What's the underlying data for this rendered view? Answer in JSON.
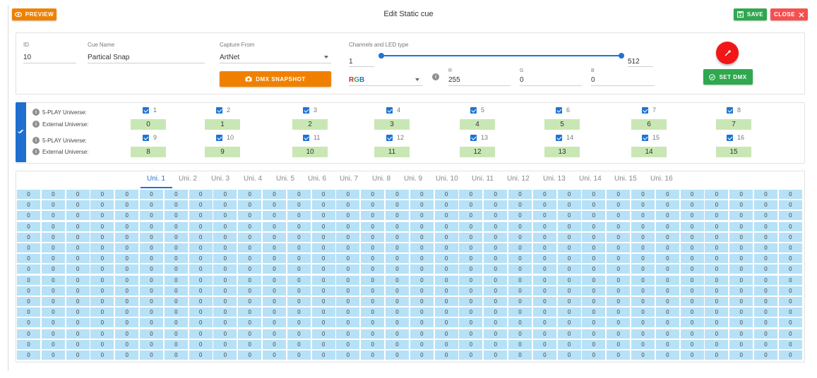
{
  "header": {
    "title": "Edit Static cue",
    "preview_label": "PREVIEW",
    "save_label": "SAVE",
    "close_label": "CLOSE"
  },
  "cue": {
    "id_label": "ID",
    "id_value": "10",
    "name_label": "Cue Name",
    "name_value": "Partical Snap",
    "capture_label": "Capture From",
    "capture_value": "ArtNet",
    "snapshot_label": "DMX SNAPSHOT",
    "channels_label": "Channels and LED type",
    "range_min": "1",
    "range_max": "512",
    "led_type": "RGB",
    "r_label": "R",
    "r_value": "255",
    "g_label": "G",
    "g_value": "0",
    "b_label": "B",
    "b_value": "0",
    "set_dmx_label": "SET DMX",
    "color_accent": "#f21616"
  },
  "universes": {
    "splay_label": "5-PLAY Universe:",
    "external_label": "External Universe:",
    "row1_checkboxes": [
      "1",
      "2",
      "3",
      "4",
      "5",
      "6",
      "7",
      "8"
    ],
    "row1_external": [
      "0",
      "1",
      "2",
      "3",
      "4",
      "5",
      "6",
      "7"
    ],
    "row2_checkboxes": [
      "9",
      "10",
      "11",
      "12",
      "13",
      "14",
      "15",
      "16"
    ],
    "row2_external": [
      "8",
      "9",
      "10",
      "11",
      "12",
      "13",
      "14",
      "15"
    ]
  },
  "tabs": [
    "Uni. 1",
    "Uni. 2",
    "Uni. 3",
    "Uni. 4",
    "Uni. 5",
    "Uni. 6",
    "Uni. 7",
    "Uni. 8",
    "Uni. 9",
    "Uni. 10",
    "Uni. 11",
    "Uni. 12",
    "Uni. 13",
    "Uni. 14",
    "Uni. 15",
    "Uni. 16"
  ],
  "active_tab": "Uni. 1",
  "grid": {
    "rows": 16,
    "cols": 32,
    "value": "0"
  }
}
